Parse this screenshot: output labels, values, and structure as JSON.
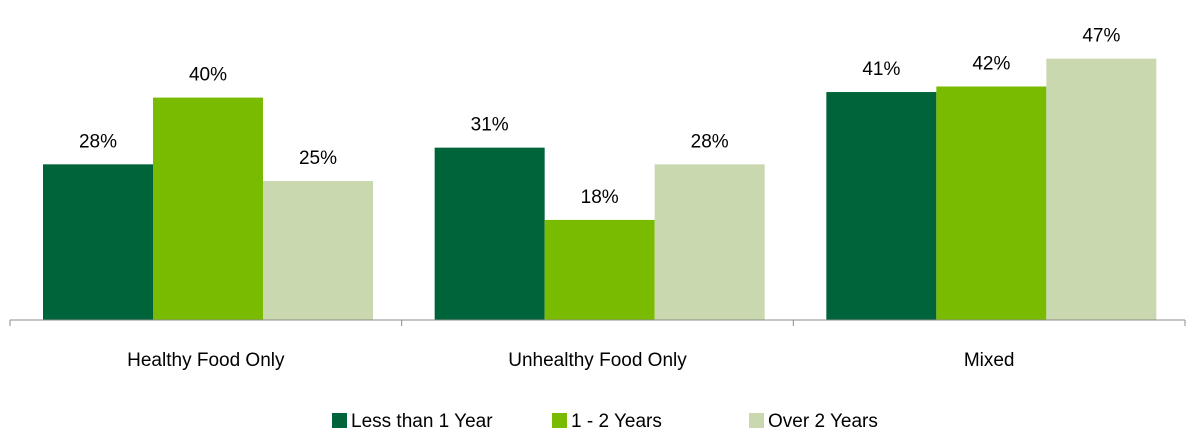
{
  "chart_data": {
    "type": "bar",
    "title": "",
    "xlabel": "",
    "ylabel": "",
    "categories": [
      "Healthy Food Only",
      "Unhealthy Food Only",
      "Mixed"
    ],
    "series": [
      {
        "name": "Less than 1 Year",
        "values": [
          28,
          31,
          41
        ],
        "labels": [
          "28%",
          "31%",
          "41%"
        ],
        "color": "#00643A"
      },
      {
        "name": "1 - 2 Years",
        "values": [
          40,
          18,
          42
        ],
        "labels": [
          "40%",
          "18%",
          "42%"
        ],
        "color": "#78BB00"
      },
      {
        "name": "Over 2 Years",
        "values": [
          25,
          28,
          47
        ],
        "labels": [
          "25%",
          "28%",
          "47%"
        ],
        "color": "#C9D8AE"
      }
    ],
    "ylim": [
      0,
      50
    ],
    "grid": false,
    "legend_position": "bottom"
  }
}
